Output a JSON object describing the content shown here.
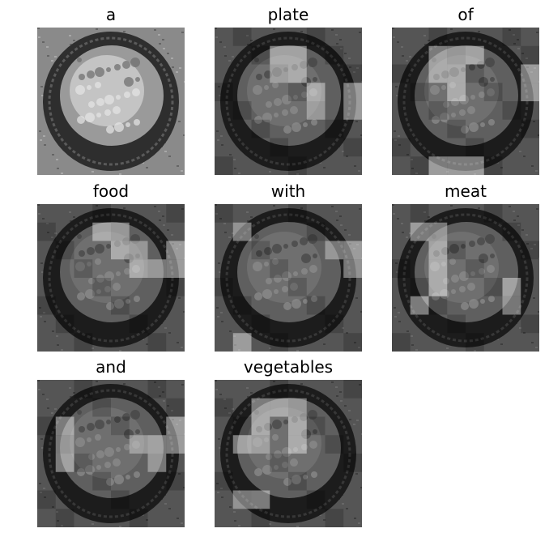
{
  "panels": [
    {
      "word": "a",
      "attention": []
    },
    {
      "word": "plate",
      "attention": [
        [
          1,
          3
        ],
        [
          2,
          3
        ],
        [
          1,
          4
        ],
        [
          2,
          4
        ],
        [
          3,
          5
        ],
        [
          4,
          5
        ],
        [
          3,
          7
        ],
        [
          4,
          7
        ]
      ]
    },
    {
      "word": "of",
      "attention": [
        [
          1,
          2
        ],
        [
          2,
          2
        ],
        [
          1,
          3
        ],
        [
          2,
          3
        ],
        [
          1,
          4
        ],
        [
          3,
          3
        ],
        [
          2,
          7
        ],
        [
          3,
          7
        ],
        [
          7,
          2
        ],
        [
          7,
          3
        ],
        [
          7,
          4
        ]
      ]
    },
    {
      "word": "food",
      "attention": [
        [
          1,
          3
        ],
        [
          1,
          4
        ],
        [
          2,
          4
        ],
        [
          2,
          5
        ],
        [
          3,
          5
        ],
        [
          3,
          6
        ],
        [
          3,
          7
        ],
        [
          2,
          7
        ]
      ]
    },
    {
      "word": "with",
      "attention": [
        [
          2,
          6
        ],
        [
          2,
          7
        ],
        [
          3,
          7
        ],
        [
          1,
          1
        ],
        [
          7,
          1
        ]
      ]
    },
    {
      "word": "meat",
      "attention": [
        [
          1,
          1
        ],
        [
          1,
          2
        ],
        [
          2,
          2
        ],
        [
          3,
          2
        ],
        [
          4,
          2
        ],
        [
          5,
          1
        ],
        [
          4,
          6
        ],
        [
          5,
          6
        ]
      ]
    },
    {
      "word": "and",
      "attention": [
        [
          2,
          1
        ],
        [
          3,
          1
        ],
        [
          4,
          1
        ],
        [
          3,
          5
        ],
        [
          3,
          6
        ],
        [
          4,
          6
        ],
        [
          3,
          7
        ],
        [
          2,
          7
        ]
      ]
    },
    {
      "word": "vegetables",
      "attention": [
        [
          1,
          2
        ],
        [
          2,
          2
        ],
        [
          3,
          1
        ],
        [
          3,
          2
        ],
        [
          1,
          3
        ],
        [
          1,
          4
        ],
        [
          2,
          4
        ],
        [
          3,
          4
        ],
        [
          6,
          1
        ],
        [
          6,
          2
        ]
      ]
    }
  ],
  "colors": {
    "background": "#ffffff",
    "title": "#000000",
    "plate_dark": "#2e2e2e",
    "plate_rim": "#5a5a5a",
    "food_light": "#c9c9c9",
    "food_mid": "#9a9a9a",
    "cloth": "#8a8a8a"
  }
}
